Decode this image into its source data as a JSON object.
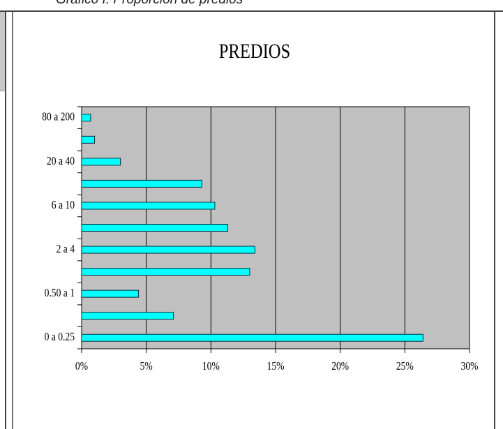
{
  "caption": "Gráfico I: Proporción de predios",
  "chart_data": {
    "type": "hbar",
    "title": "PREDIOS",
    "categories": [
      "0 a 0.25",
      null,
      "0.50 a 1",
      null,
      "2 a 4",
      null,
      "6 a 10",
      null,
      "20 a 40",
      null,
      "80 a 200"
    ],
    "values": [
      26.4,
      7.1,
      4.4,
      13.0,
      13.4,
      11.3,
      10.3,
      9.3,
      3.0,
      1.0,
      0.7
    ],
    "color": "#00ffff",
    "xlim": [
      0,
      30
    ],
    "xticks": [
      {
        "value": 0,
        "label": "0%"
      },
      {
        "value": 5,
        "label": "5%"
      },
      {
        "value": 10,
        "label": "10%"
      },
      {
        "value": 15,
        "label": "15%"
      },
      {
        "value": 20,
        "label": "20%"
      },
      {
        "value": 25,
        "label": "25%"
      },
      {
        "value": 30,
        "label": "30%"
      }
    ],
    "grid": true
  }
}
